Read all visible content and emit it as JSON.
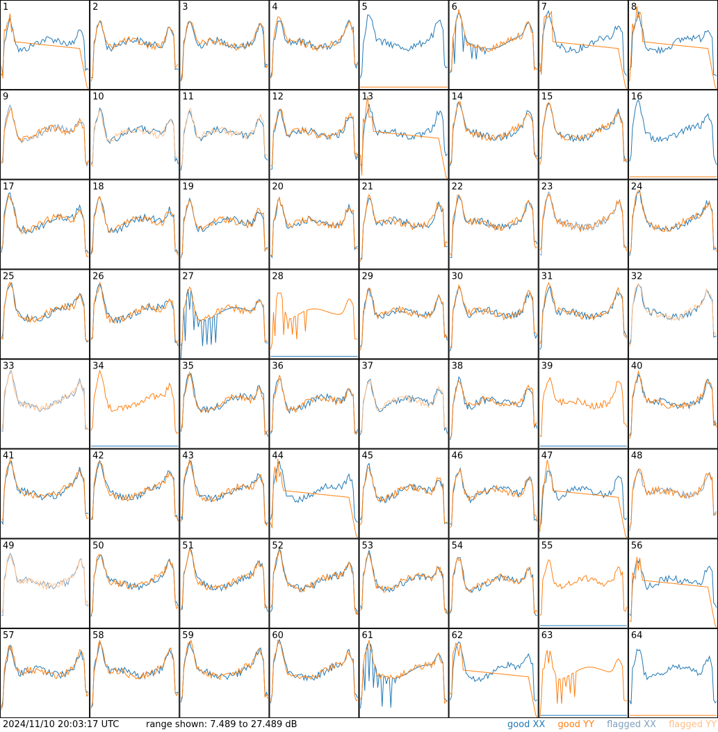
{
  "chart_data": {
    "type": "line",
    "grid_layout": {
      "rows": 8,
      "cols": 8
    },
    "panel_labels": [
      "1",
      "2",
      "3",
      "4",
      "5",
      "6",
      "7",
      "8",
      "9",
      "10",
      "11",
      "12",
      "13",
      "14",
      "15",
      "16",
      "17",
      "18",
      "19",
      "20",
      "21",
      "22",
      "23",
      "24",
      "25",
      "26",
      "27",
      "28",
      "29",
      "30",
      "31",
      "32",
      "33",
      "34",
      "35",
      "36",
      "37",
      "38",
      "39",
      "40",
      "41",
      "42",
      "43",
      "44",
      "45",
      "46",
      "47",
      "48",
      "49",
      "50",
      "51",
      "52",
      "53",
      "54",
      "55",
      "56",
      "57",
      "58",
      "59",
      "60",
      "61",
      "62",
      "63",
      "64"
    ],
    "ylim": [
      7.489,
      27.489
    ],
    "timestamp": "2024/11/10 20:03:17 UTC",
    "range_text": "range shown: 7.489 to 27.489 dB",
    "legend": [
      {
        "label": "good XX",
        "color": "#1f77b4"
      },
      {
        "label": "good YY",
        "color": "#ff7f0e"
      },
      {
        "label": "flagged XX",
        "color": "#7f9fbf"
      },
      {
        "label": "flagged YY",
        "color": "#ffbf8a"
      }
    ],
    "panel_status": {
      "xx_flagged": [
        9,
        23,
        33,
        48,
        49
      ],
      "yy_flagged": [
        10,
        11,
        32,
        33,
        37,
        49
      ]
    }
  }
}
